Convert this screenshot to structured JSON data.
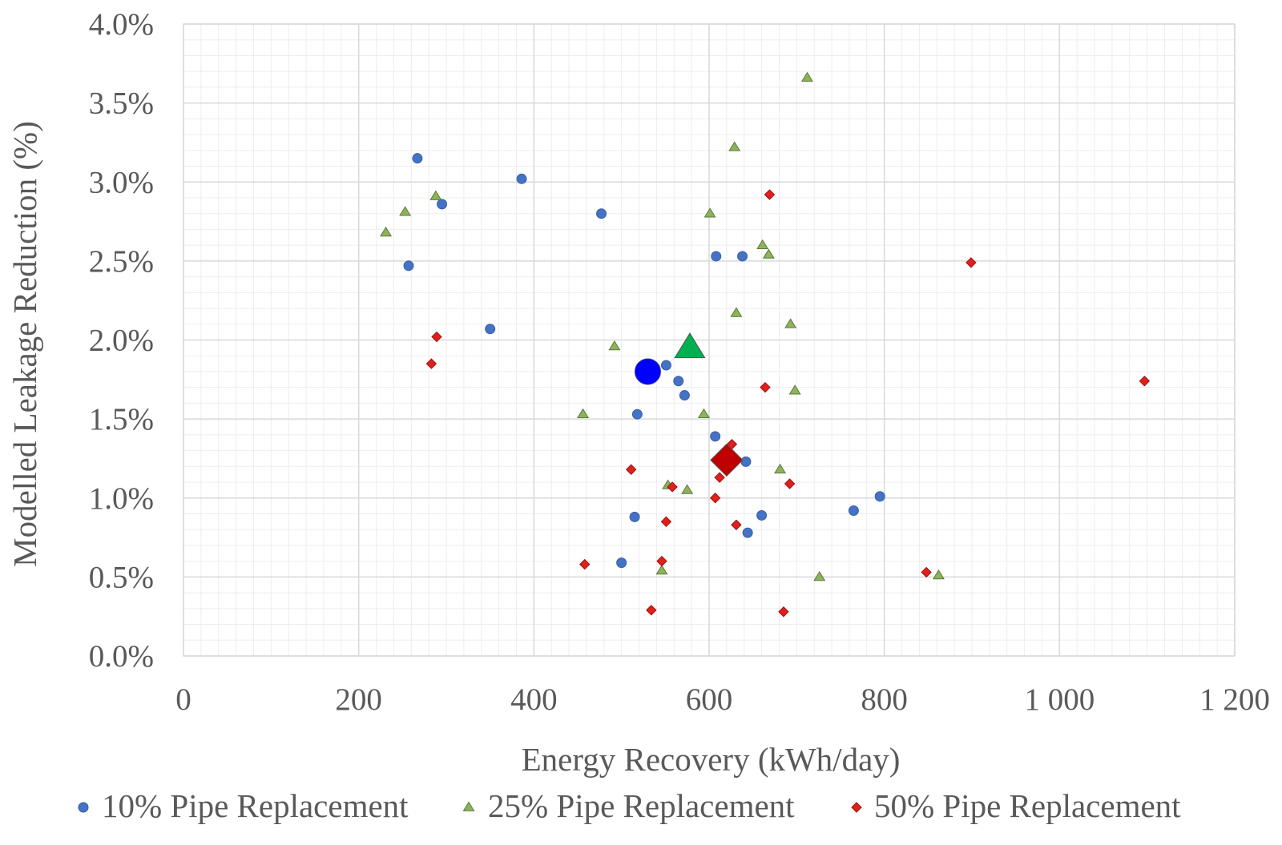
{
  "chart_data": {
    "type": "scatter",
    "title": "",
    "xlabel": "Energy Recovery  (kWh/day)",
    "ylabel": "Modelled Leakage Reduction (%)",
    "xlim": [
      0,
      1200
    ],
    "ylim": [
      0,
      4.0
    ],
    "x_ticks": [
      0,
      200,
      400,
      600,
      800,
      1000,
      1200
    ],
    "x_tick_labels": [
      "0",
      "200",
      "400",
      "600",
      "800",
      "1 000",
      "1 200"
    ],
    "y_ticks": [
      0,
      0.5,
      1.0,
      1.5,
      2.0,
      2.5,
      3.0,
      3.5,
      4.0
    ],
    "y_tick_labels": [
      "0.0%",
      "0.5%",
      "1.0%",
      "1.5%",
      "2.0%",
      "2.5%",
      "3.0%",
      "3.5%",
      "4.0%"
    ],
    "grid": true,
    "legend_position": "bottom",
    "series": [
      {
        "name": "10% Pipe Replacement",
        "marker": "circle",
        "color": "#4472C4",
        "mean_color": "#0000FF",
        "points": [
          [
            267,
            3.15
          ],
          [
            295,
            2.86
          ],
          [
            257,
            2.47
          ],
          [
            386,
            3.02
          ],
          [
            477,
            2.8
          ],
          [
            350,
            2.07
          ],
          [
            608,
            2.53
          ],
          [
            638,
            2.53
          ],
          [
            551,
            1.84
          ],
          [
            565,
            1.74
          ],
          [
            572,
            1.65
          ],
          [
            518,
            1.53
          ],
          [
            607,
            1.39
          ],
          [
            642,
            1.23
          ],
          [
            795,
            1.01
          ],
          [
            765,
            0.92
          ],
          [
            515,
            0.88
          ],
          [
            660,
            0.89
          ],
          [
            644,
            0.78
          ],
          [
            500,
            0.59
          ]
        ],
        "mean": [
          530,
          1.8
        ]
      },
      {
        "name": "25% Pipe Replacement",
        "marker": "triangle",
        "color": "#8DB35A",
        "mean_color": "#00B050",
        "points": [
          [
            712,
            3.66
          ],
          [
            629,
            3.22
          ],
          [
            288,
            2.91
          ],
          [
            253,
            2.81
          ],
          [
            231,
            2.68
          ],
          [
            601,
            2.8
          ],
          [
            661,
            2.6
          ],
          [
            668,
            2.54
          ],
          [
            631,
            2.17
          ],
          [
            693,
            2.1
          ],
          [
            492,
            1.96
          ],
          [
            698,
            1.68
          ],
          [
            456,
            1.53
          ],
          [
            594,
            1.53
          ],
          [
            681,
            1.18
          ],
          [
            553,
            1.08
          ],
          [
            575,
            1.05
          ],
          [
            546,
            0.54
          ],
          [
            726,
            0.5
          ],
          [
            862,
            0.51
          ]
        ],
        "mean": [
          578,
          1.95
        ]
      },
      {
        "name": "50% Pipe Replacement",
        "marker": "diamond",
        "color": "#E0201B",
        "mean_color": "#C00000",
        "points": [
          [
            669,
            2.92
          ],
          [
            899,
            2.49
          ],
          [
            289,
            2.02
          ],
          [
            283,
            1.85
          ],
          [
            664,
            1.7
          ],
          [
            1097,
            1.74
          ],
          [
            626,
            1.34
          ],
          [
            511,
            1.18
          ],
          [
            612,
            1.13
          ],
          [
            558,
            1.07
          ],
          [
            692,
            1.09
          ],
          [
            607,
            1.0
          ],
          [
            551,
            0.85
          ],
          [
            631,
            0.83
          ],
          [
            458,
            0.58
          ],
          [
            546,
            0.6
          ],
          [
            848,
            0.53
          ],
          [
            534,
            0.29
          ],
          [
            685,
            0.28
          ]
        ],
        "mean": [
          620,
          1.24
        ]
      }
    ]
  }
}
